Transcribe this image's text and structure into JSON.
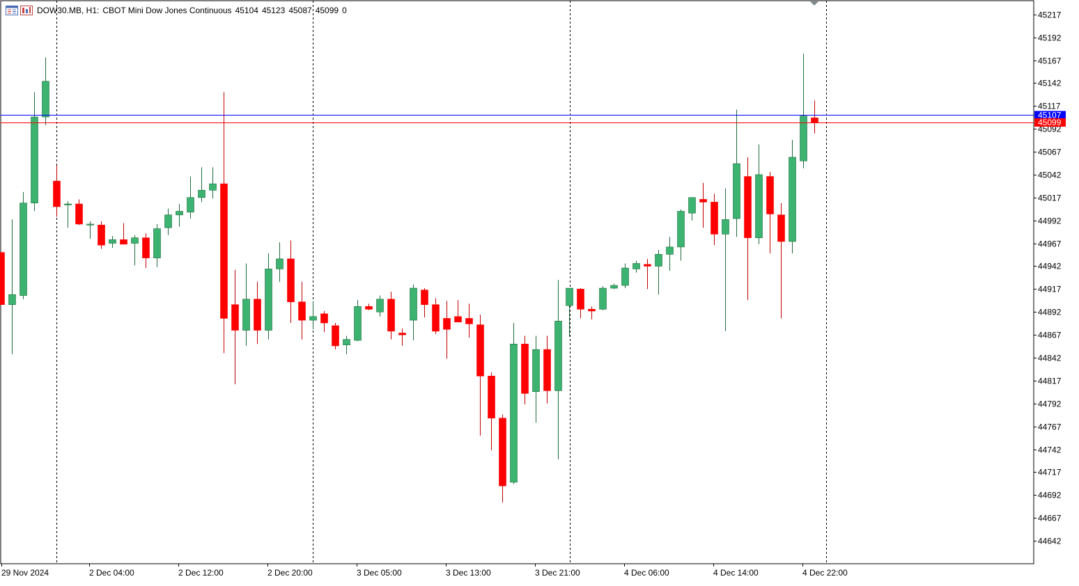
{
  "header": {
    "symbol": "DOW30.MB, H1:",
    "description": "CBOT Mini Dow Jones Continuous",
    "open": "45104",
    "high": "45123",
    "low": "45087",
    "close": "45099",
    "volume": "0",
    "icons": [
      "indicator-list-icon",
      "chart-mode-icon"
    ]
  },
  "colors": {
    "bull": "#3cb371",
    "bear": "#ff0000",
    "bid_line": "#0000ff",
    "ask_line": "#ff0000",
    "grid": "#000000",
    "background": "#ffffff"
  },
  "chart_data": {
    "type": "candlestick",
    "timeframe": "H1",
    "symbol": "DOW30.MB",
    "ylim": [
      44617,
      45232
    ],
    "y_ticks": [
      45217,
      45192,
      45167,
      45142,
      45117,
      45092,
      45067,
      45042,
      45017,
      44992,
      44967,
      44942,
      44917,
      44892,
      44867,
      44842,
      44817,
      44792,
      44767,
      44742,
      44717,
      44692,
      44667,
      44642
    ],
    "x_labels": [
      "29 Nov 2024",
      "2 Dec 04:00",
      "2 Dec 12:00",
      "2 Dec 20:00",
      "3 Dec 05:00",
      "3 Dec 13:00",
      "3 Dec 21:00",
      "4 Dec 06:00",
      "4 Dec 14:00",
      "4 Dec 22:00"
    ],
    "price_lines": [
      {
        "name": "bid",
        "value": 45107,
        "label": "45107"
      },
      {
        "name": "ask",
        "value": 45099,
        "label": "45099"
      }
    ],
    "candles": [
      [
        44957,
        44957,
        44900,
        44900
      ],
      [
        44900,
        44993,
        44846,
        44911
      ],
      [
        44910,
        45023,
        44906,
        45011
      ],
      [
        45011,
        45132,
        45002,
        45105
      ],
      [
        45105,
        45170,
        45096,
        45144
      ],
      [
        45035,
        45052,
        44996,
        45007
      ],
      [
        45010,
        45013,
        44984,
        45010
      ],
      [
        45010,
        45015,
        44987,
        44988
      ],
      [
        44988,
        44991,
        44972,
        44988
      ],
      [
        44987,
        44991,
        44961,
        44965
      ],
      [
        44967,
        44975,
        44962,
        44971
      ],
      [
        44971,
        44989,
        44966,
        44966
      ],
      [
        44967,
        44976,
        44943,
        44973
      ],
      [
        44973,
        44978,
        44940,
        44951
      ],
      [
        44951,
        44988,
        44941,
        44983
      ],
      [
        44984,
        45005,
        44976,
        44998
      ],
      [
        44998,
        45010,
        44985,
        45002
      ],
      [
        45001,
        45040,
        44994,
        45017
      ],
      [
        45017,
        45050,
        45012,
        45025
      ],
      [
        45025,
        45050,
        45016,
        45032
      ],
      [
        45032,
        45132,
        44847,
        44885
      ],
      [
        44900,
        44938,
        44813,
        44872
      ],
      [
        44872,
        44945,
        44855,
        44906
      ],
      [
        44906,
        44925,
        44857,
        44872
      ],
      [
        44872,
        44956,
        44862,
        44939
      ],
      [
        44939,
        44968,
        44925,
        44950
      ],
      [
        44950,
        44970,
        44880,
        44903
      ],
      [
        44903,
        44925,
        44862,
        44883
      ],
      [
        44883,
        44904,
        44873,
        44887
      ],
      [
        44890,
        44893,
        44870,
        44880
      ],
      [
        44877,
        44880,
        44851,
        44855
      ],
      [
        44856,
        44866,
        44846,
        44862
      ],
      [
        44861,
        44905,
        44860,
        44898
      ],
      [
        44898,
        44901,
        44894,
        44895
      ],
      [
        44892,
        44910,
        44887,
        44906
      ],
      [
        44906,
        44914,
        44862,
        44871
      ],
      [
        44869,
        44874,
        44855,
        44867
      ],
      [
        44883,
        44922,
        44861,
        44918
      ],
      [
        44916,
        44918,
        44886,
        44900
      ],
      [
        44900,
        44907,
        44868,
        44871
      ],
      [
        44885,
        44904,
        44841,
        44873
      ],
      [
        44887,
        44905,
        44881,
        44881
      ],
      [
        44885,
        44901,
        44864,
        44879
      ],
      [
        44878,
        44889,
        44757,
        44822
      ],
      [
        44822,
        44826,
        44741,
        44776
      ],
      [
        44776,
        44780,
        44684,
        44702
      ],
      [
        44706,
        44880,
        44704,
        44857
      ],
      [
        44857,
        44866,
        44791,
        44803
      ],
      [
        44805,
        44866,
        44771,
        44851
      ],
      [
        44851,
        44866,
        44792,
        44806
      ],
      [
        44806,
        44927,
        44731,
        44882
      ],
      [
        44899,
        44917,
        44865,
        44918
      ],
      [
        44917,
        44918,
        44885,
        44895
      ],
      [
        44895,
        44898,
        44884,
        44893
      ],
      [
        44895,
        44920,
        44894,
        44918
      ],
      [
        44918,
        44923,
        44917,
        44921
      ],
      [
        44921,
        44945,
        44918,
        44940
      ],
      [
        44939,
        44948,
        44935,
        44945
      ],
      [
        44944,
        44950,
        44917,
        44942
      ],
      [
        44942,
        44960,
        44911,
        44955
      ],
      [
        44955,
        44974,
        44937,
        44963
      ],
      [
        44963,
        45004,
        44948,
        45002
      ],
      [
        45000,
        45017,
        44992,
        45017
      ],
      [
        45015,
        45033,
        44984,
        45012
      ],
      [
        45012,
        45021,
        44965,
        44977
      ],
      [
        44977,
        45027,
        44871,
        44993
      ],
      [
        44994,
        45113,
        44974,
        45054
      ],
      [
        45040,
        45061,
        44905,
        44973
      ],
      [
        44973,
        45075,
        44966,
        45042
      ],
      [
        45040,
        45045,
        44956,
        44999
      ],
      [
        44998,
        45011,
        44885,
        44969
      ],
      [
        44969,
        45080,
        44956,
        45061
      ],
      [
        45057,
        45174,
        45049,
        45106
      ],
      [
        45104,
        45123,
        45087,
        45099
      ]
    ]
  }
}
